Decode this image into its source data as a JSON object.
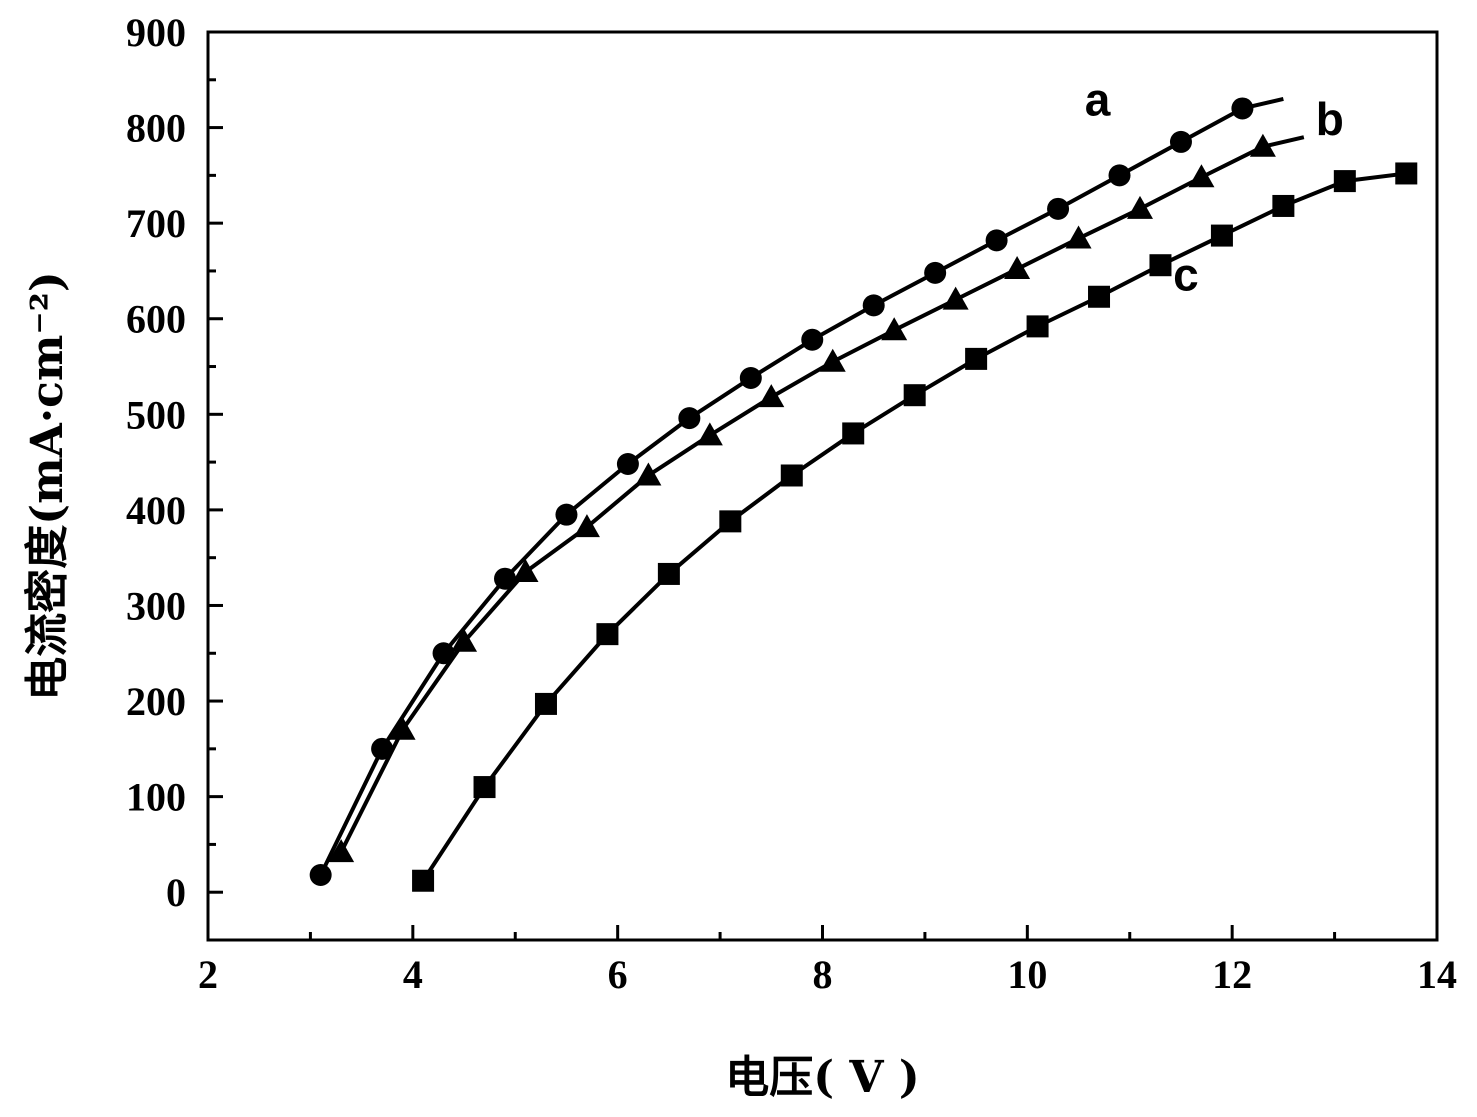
{
  "chart_data": {
    "type": "line",
    "xlabel": "电压( V )",
    "ylabel": "电流密度(mA·cm⁻²)",
    "xlim": [
      2,
      14
    ],
    "ylim": [
      -50,
      900
    ],
    "xticks": [
      2,
      4,
      6,
      8,
      10,
      12,
      14
    ],
    "yticks": [
      0,
      100,
      200,
      300,
      400,
      500,
      600,
      700,
      800,
      900
    ],
    "x_minor_step": 1,
    "y_minor_step": 50,
    "grid": false,
    "legend": "none",
    "series": [
      {
        "name": "a",
        "marker": "circle",
        "end_x": 12.5,
        "points": [
          [
            3.1,
            18
          ],
          [
            3.7,
            150
          ],
          [
            4.3,
            250
          ],
          [
            4.9,
            328
          ],
          [
            5.5,
            395
          ],
          [
            6.1,
            448
          ],
          [
            6.7,
            496
          ],
          [
            7.3,
            538
          ],
          [
            7.9,
            578
          ],
          [
            8.5,
            614
          ],
          [
            9.1,
            648
          ],
          [
            9.7,
            682
          ],
          [
            10.3,
            715
          ],
          [
            10.9,
            750
          ],
          [
            11.5,
            785
          ],
          [
            12.1,
            820
          ]
        ]
      },
      {
        "name": "b",
        "marker": "triangle",
        "end_x": 12.7,
        "points": [
          [
            3.3,
            42
          ],
          [
            3.9,
            170
          ],
          [
            4.5,
            262
          ],
          [
            5.1,
            335
          ],
          [
            5.7,
            382
          ],
          [
            6.3,
            436
          ],
          [
            6.9,
            478
          ],
          [
            7.5,
            518
          ],
          [
            8.1,
            555
          ],
          [
            8.7,
            588
          ],
          [
            9.3,
            620
          ],
          [
            9.9,
            652
          ],
          [
            10.5,
            684
          ],
          [
            11.1,
            715
          ],
          [
            11.7,
            748
          ],
          [
            12.3,
            780
          ]
        ]
      },
      {
        "name": "c",
        "marker": "square",
        "end_x": 13.7,
        "points": [
          [
            4.1,
            12
          ],
          [
            4.7,
            110
          ],
          [
            5.3,
            197
          ],
          [
            5.9,
            270
          ],
          [
            6.5,
            333
          ],
          [
            7.1,
            388
          ],
          [
            7.7,
            436
          ],
          [
            8.3,
            480
          ],
          [
            8.9,
            520
          ],
          [
            9.5,
            558
          ],
          [
            10.1,
            592
          ],
          [
            10.7,
            623
          ],
          [
            11.3,
            656
          ],
          [
            11.9,
            687
          ],
          [
            12.5,
            718
          ],
          [
            13.1,
            744
          ],
          [
            13.7,
            752
          ]
        ]
      }
    ]
  }
}
